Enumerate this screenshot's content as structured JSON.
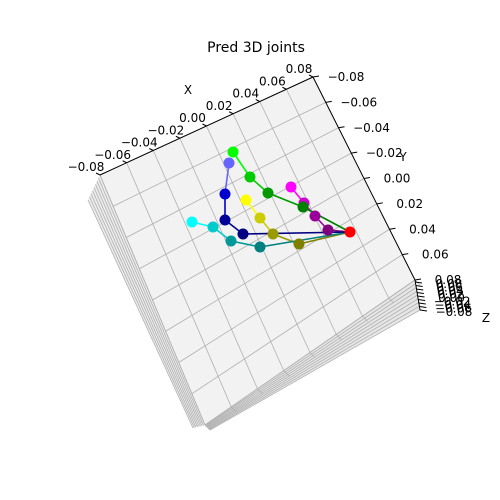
{
  "chart_data": {
    "type": "scatter",
    "title": "Pred 3D joints",
    "axes": {
      "x": {
        "label": "X",
        "ticks": [
          "−0.08",
          "−0.06",
          "−0.04",
          "−0.02",
          "0.00",
          "0.02",
          "0.04",
          "0.06",
          "0.08"
        ]
      },
      "y": {
        "label": "Y",
        "ticks": [
          "−0.08",
          "−0.06",
          "−0.04",
          "−0.02",
          "0.00",
          "0.02",
          "0.04",
          "0.06",
          "0.08"
        ]
      },
      "z": {
        "label": "Z",
        "ticks": [
          "0.08",
          "0.06",
          "0.04",
          "0.02",
          "0.00",
          "−0.02",
          "−0.04",
          "−0.06",
          "−0.08"
        ]
      }
    },
    "grid": true,
    "joints": [
      {
        "name": "wrist",
        "color": "#ff0000"
      },
      {
        "name": "thumb-1",
        "color": "#800080"
      },
      {
        "name": "thumb-2",
        "color": "#990099"
      },
      {
        "name": "thumb-3",
        "color": "#cc00cc"
      },
      {
        "name": "thumb-4",
        "color": "#ff00ff"
      },
      {
        "name": "index-1",
        "color": "#008000"
      },
      {
        "name": "index-2",
        "color": "#009900"
      },
      {
        "name": "index-3",
        "color": "#00cc00"
      },
      {
        "name": "index-4",
        "color": "#00ff00"
      },
      {
        "name": "middle-1",
        "color": "#808000"
      },
      {
        "name": "middle-2",
        "color": "#999900"
      },
      {
        "name": "middle-3",
        "color": "#cccc00"
      },
      {
        "name": "middle-4",
        "color": "#ffff00"
      },
      {
        "name": "ring-1",
        "color": "#008080"
      },
      {
        "name": "ring-2",
        "color": "#009999"
      },
      {
        "name": "ring-3",
        "color": "#00cccc"
      },
      {
        "name": "ring-4",
        "color": "#00ffff"
      },
      {
        "name": "pinky-1",
        "color": "#000080"
      },
      {
        "name": "pinky-2",
        "color": "#000099"
      },
      {
        "name": "pinky-3",
        "color": "#0000cc"
      },
      {
        "name": "pinky-4",
        "color": "#6666ff"
      }
    ],
    "bones": [
      {
        "from": 0,
        "to": 1,
        "color": "#800080"
      },
      {
        "from": 1,
        "to": 2,
        "color": "#990099"
      },
      {
        "from": 2,
        "to": 3,
        "color": "#cc00cc"
      },
      {
        "from": 3,
        "to": 4,
        "color": "#ff00ff"
      },
      {
        "from": 0,
        "to": 5,
        "color": "#008000"
      },
      {
        "from": 5,
        "to": 6,
        "color": "#009900"
      },
      {
        "from": 6,
        "to": 7,
        "color": "#00cc00"
      },
      {
        "from": 7,
        "to": 8,
        "color": "#00ff00"
      },
      {
        "from": 0,
        "to": 9,
        "color": "#808000"
      },
      {
        "from": 9,
        "to": 10,
        "color": "#999900"
      },
      {
        "from": 10,
        "to": 11,
        "color": "#cccc00"
      },
      {
        "from": 11,
        "to": 12,
        "color": "#ffff00"
      },
      {
        "from": 0,
        "to": 13,
        "color": "#008080"
      },
      {
        "from": 13,
        "to": 14,
        "color": "#009999"
      },
      {
        "from": 14,
        "to": 15,
        "color": "#00cccc"
      },
      {
        "from": 15,
        "to": 16,
        "color": "#00ffff"
      },
      {
        "from": 0,
        "to": 17,
        "color": "#000080"
      },
      {
        "from": 17,
        "to": 18,
        "color": "#000099"
      },
      {
        "from": 18,
        "to": 19,
        "color": "#0000cc"
      },
      {
        "from": 19,
        "to": 20,
        "color": "#6666ff"
      }
    ]
  }
}
